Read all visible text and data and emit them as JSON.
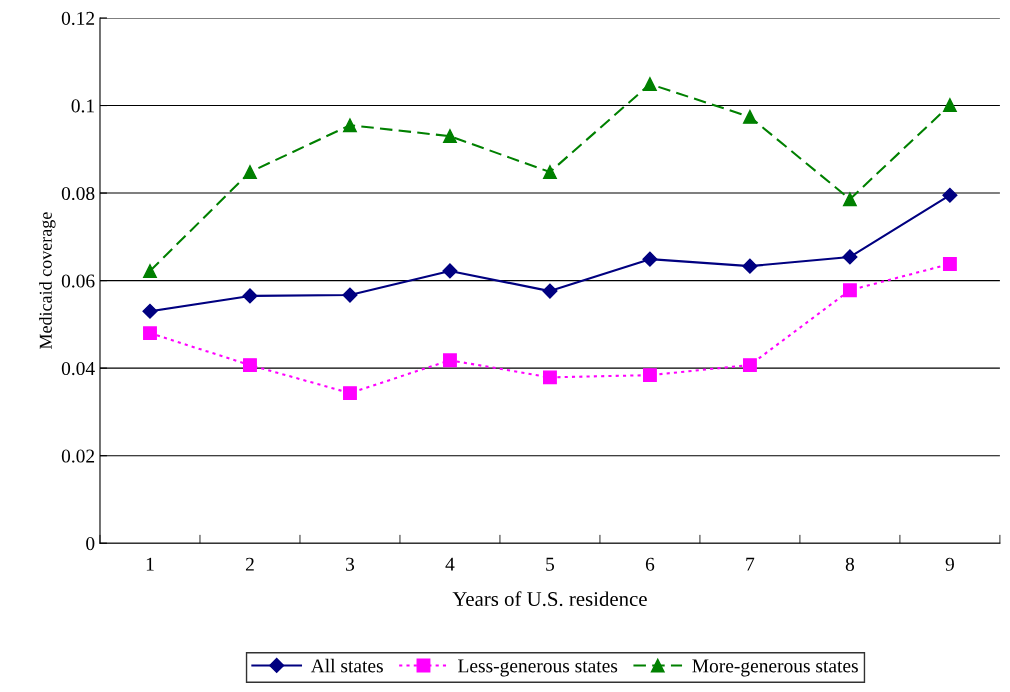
{
  "chart_data": {
    "type": "line",
    "xlabel": "Years of U.S. residence",
    "ylabel": "Medicaid coverage",
    "categories": [
      "1",
      "2",
      "3",
      "4",
      "5",
      "6",
      "7",
      "8",
      "9"
    ],
    "series": [
      {
        "name": "All states",
        "color": "#000080",
        "marker": "diamond",
        "line_style": "solid",
        "values": [
          0.053,
          0.0565,
          0.0567,
          0.0622,
          0.0576,
          0.0649,
          0.0633,
          0.0654,
          0.0795
        ]
      },
      {
        "name": "Less-generous states",
        "color": "#ff00ff",
        "marker": "square",
        "line_style": "dotted",
        "values": [
          0.048,
          0.0407,
          0.0343,
          0.0418,
          0.0379,
          0.0384,
          0.0407,
          0.0578,
          0.0638
        ]
      },
      {
        "name": "More-generous states",
        "color": "#008000",
        "marker": "triangle",
        "line_style": "dashed",
        "values": [
          0.0622,
          0.0848,
          0.0955,
          0.093,
          0.0848,
          0.1049,
          0.0974,
          0.0786,
          0.1001
        ]
      }
    ],
    "ylim": [
      0,
      0.12
    ],
    "yticks": [
      0,
      0.02,
      0.04,
      0.06,
      0.08,
      0.1,
      0.12
    ],
    "grid": "y",
    "legend": "bottom"
  }
}
